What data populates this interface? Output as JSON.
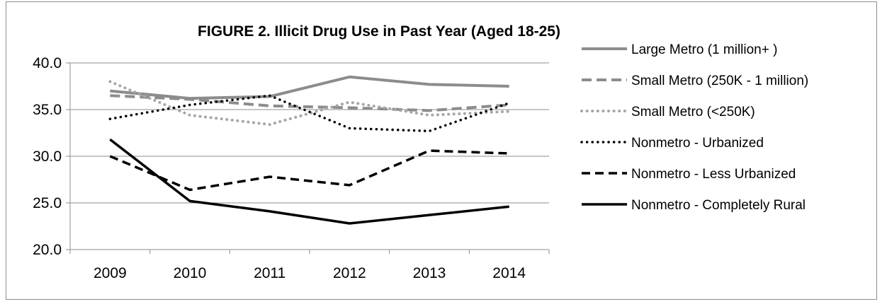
{
  "chart_data": {
    "type": "line",
    "title": "FIGURE 2. Illicit Drug Use in Past Year (Aged 18-25)",
    "xlabel": "",
    "ylabel": "",
    "categories": [
      "2009",
      "2010",
      "2011",
      "2012",
      "2013",
      "2014"
    ],
    "ylim": [
      20,
      40
    ],
    "yticks": [
      20,
      25,
      30,
      35,
      40
    ],
    "ytick_labels": [
      "20.0",
      "25.0",
      "30.0",
      "35.0",
      "40.0"
    ],
    "grid": true,
    "legend_position": "right",
    "series": [
      {
        "name": "Large Metro (1 million+ )",
        "values": [
          37.0,
          36.2,
          36.4,
          38.5,
          37.7,
          37.5
        ],
        "color": "#8c8c8c",
        "style": "solid-gray"
      },
      {
        "name": "Small Metro (250K - 1 million)",
        "values": [
          36.5,
          36.1,
          35.4,
          35.2,
          34.9,
          35.5
        ],
        "color": "#8c8c8c",
        "style": "dashed-gray"
      },
      {
        "name": "Small Metro (<250K)",
        "values": [
          38.0,
          34.4,
          33.4,
          35.8,
          34.4,
          34.8
        ],
        "color": "#a6a6a6",
        "style": "dotted-gray"
      },
      {
        "name": "Nonmetro - Urbanized",
        "values": [
          34.0,
          35.5,
          36.5,
          33.0,
          32.7,
          35.7
        ],
        "color": "#000000",
        "style": "dotted-black"
      },
      {
        "name": "Nonmetro - Less Urbanized",
        "values": [
          30.0,
          26.4,
          27.8,
          26.9,
          30.6,
          30.3
        ],
        "color": "#000000",
        "style": "dashed-black"
      },
      {
        "name": "Nonmetro - Completely Rural",
        "values": [
          31.8,
          25.2,
          24.1,
          22.8,
          23.7,
          24.6
        ],
        "color": "#000000",
        "style": "solid-black"
      }
    ]
  }
}
